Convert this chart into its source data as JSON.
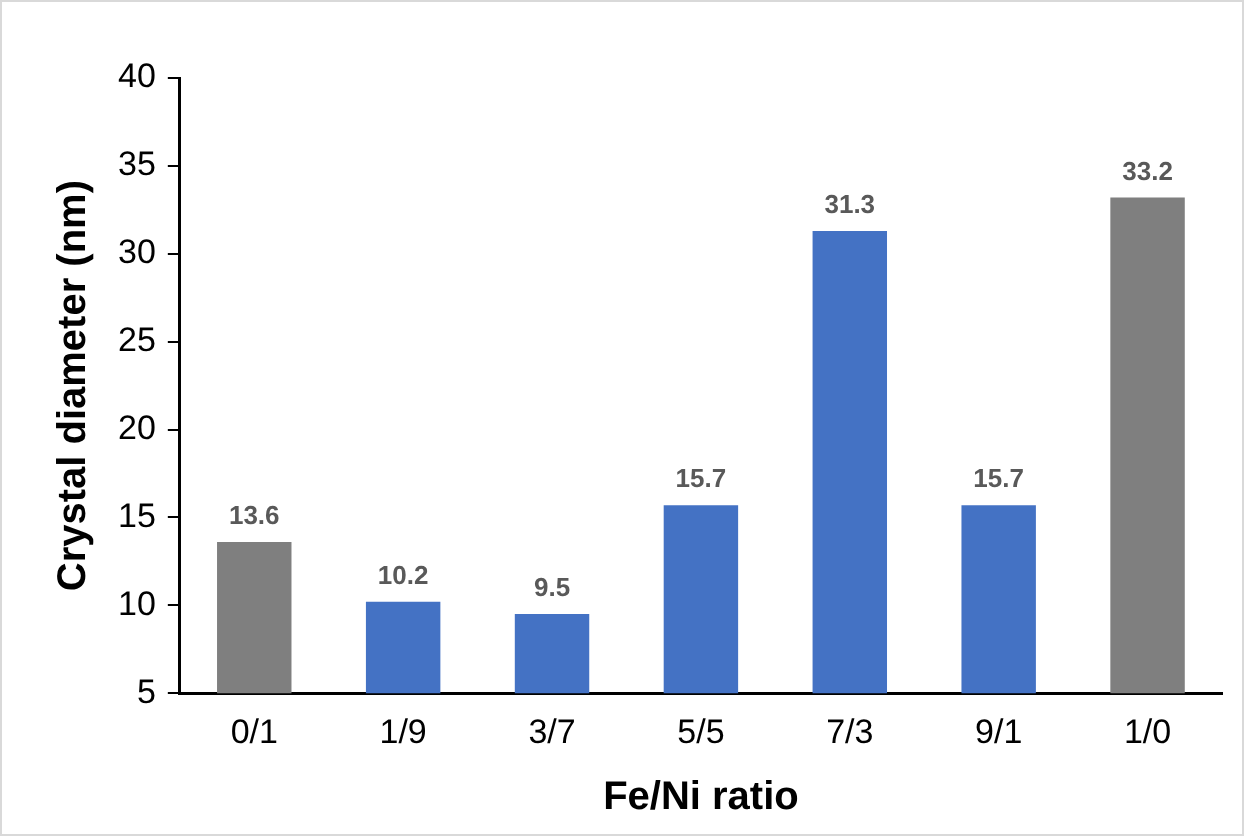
{
  "chart_data": {
    "type": "bar",
    "xlabel": "Fe/Ni ratio",
    "ylabel": "Crystal diameter (nm)",
    "categories": [
      "0/1",
      "1/9",
      "3/7",
      "5/5",
      "7/3",
      "9/1",
      "1/0"
    ],
    "values": [
      13.6,
      10.2,
      9.5,
      15.7,
      31.3,
      15.7,
      33.2
    ],
    "colors": [
      "#7f7f7f",
      "#4472c4",
      "#4472c4",
      "#4472c4",
      "#4472c4",
      "#4472c4",
      "#7f7f7f"
    ],
    "ylim": [
      5,
      40
    ],
    "yticks": [
      5,
      10,
      15,
      20,
      25,
      30,
      35,
      40
    ],
    "grid": false,
    "legend": false,
    "data_labels": true
  }
}
